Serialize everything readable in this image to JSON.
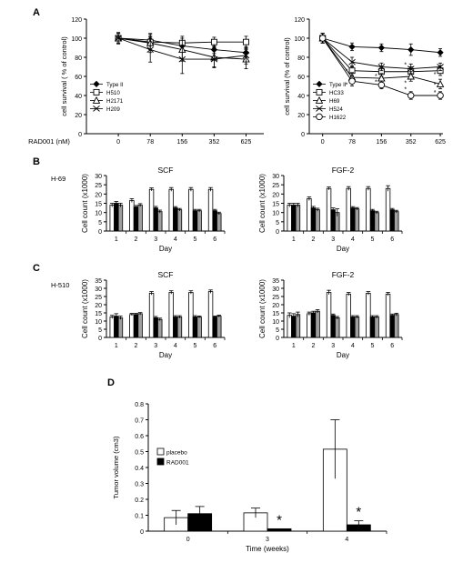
{
  "panel_labels": {
    "A": "A",
    "B": "B",
    "C": "C",
    "D": "D"
  },
  "colors": {
    "ink": "#000000",
    "white_bar": "#ffffff",
    "black_bar": "#000000",
    "grey_bar": "#a0a0a0"
  },
  "chart_data": [
    {
      "id": "A-left",
      "type": "line",
      "ylabel": "cell survival ( % of control)",
      "x_axis_title": "RAD001 (nM)",
      "categories": [
        "0",
        "78",
        "156",
        "352",
        "625"
      ],
      "ylim": [
        0,
        120
      ],
      "yticks": [
        "0",
        "20",
        "40",
        "60",
        "80",
        "100",
        "120"
      ],
      "legend_position": "bottom-left",
      "series": [
        {
          "name": "Type II",
          "marker": "diamond-filled",
          "values": [
            100,
            98,
            92,
            88,
            85
          ],
          "err": [
            5,
            4,
            4,
            4,
            4
          ]
        },
        {
          "name": "H510",
          "marker": "square-open",
          "values": [
            100,
            96,
            95,
            96,
            96
          ],
          "err": [
            5,
            8,
            7,
            5,
            6
          ]
        },
        {
          "name": "H2171",
          "marker": "triangle-open",
          "values": [
            100,
            95,
            88,
            80,
            78
          ],
          "err": [
            6,
            10,
            12,
            10,
            10
          ]
        },
        {
          "name": "H209",
          "marker": "x",
          "values": [
            100,
            88,
            78,
            78,
            82
          ],
          "err": [
            5,
            13,
            15,
            9,
            9
          ]
        }
      ]
    },
    {
      "id": "A-right",
      "type": "line",
      "ylabel": "cell survival (% of control)",
      "categories": [
        "0",
        "78",
        "156",
        "352",
        "625"
      ],
      "ylim": [
        0,
        120
      ],
      "yticks": [
        "0",
        "20",
        "40",
        "60",
        "80",
        "100",
        "120"
      ],
      "legend_position": "bottom-left",
      "significance_marks": [
        {
          "cat": 1,
          "y": 66,
          "text": "*"
        },
        {
          "cat": 1,
          "y": 52,
          "text": "*"
        },
        {
          "cat": 2,
          "y": 61,
          "text": "*"
        },
        {
          "cat": 2,
          "y": 55,
          "text": "*"
        },
        {
          "cat": 3,
          "y": 73,
          "text": "*"
        },
        {
          "cat": 3,
          "y": 54,
          "text": "*"
        },
        {
          "cat": 3,
          "y": 47,
          "text": "*"
        },
        {
          "cat": 4,
          "y": 63,
          "text": "*"
        },
        {
          "cat": 4,
          "y": 52,
          "text": "*"
        },
        {
          "cat": 4,
          "y": 44,
          "text": "*"
        }
      ],
      "series": [
        {
          "name": "Type II",
          "marker": "diamond-filled",
          "values": [
            100,
            91,
            90,
            88,
            85
          ],
          "err": [
            5,
            4,
            4,
            6,
            4
          ]
        },
        {
          "name": "HC33",
          "marker": "square-open",
          "values": [
            100,
            66,
            65,
            65,
            66
          ],
          "err": [
            5,
            5,
            5,
            5,
            5
          ]
        },
        {
          "name": "H69",
          "marker": "triangle-open",
          "values": [
            100,
            59,
            58,
            60,
            52
          ],
          "err": [
            5,
            5,
            5,
            5,
            5
          ]
        },
        {
          "name": "H524",
          "marker": "x",
          "values": [
            100,
            75,
            70,
            68,
            70
          ],
          "err": [
            5,
            5,
            4,
            5,
            4
          ]
        },
        {
          "name": "H1622",
          "marker": "circle-open",
          "values": [
            100,
            55,
            51,
            40,
            40
          ],
          "err": [
            5,
            5,
            4,
            4,
            4
          ]
        }
      ]
    },
    {
      "id": "B-SCF",
      "type": "bar",
      "panel_tag": "H-69",
      "title": "SCF",
      "xlabel": "Day",
      "ylabel": "Cell count (x1000)",
      "categories": [
        "1",
        "2",
        "3",
        "4",
        "5",
        "6"
      ],
      "ylim": [
        0,
        30
      ],
      "yticks": [
        "0",
        "5",
        "10",
        "15",
        "20",
        "25",
        "30"
      ],
      "series": [
        {
          "fill": "white",
          "values": [
            14,
            16.5,
            22.5,
            22.5,
            22.5,
            22.5
          ],
          "err": [
            1,
            1,
            0.8,
            1,
            1,
            1
          ]
        },
        {
          "fill": "black",
          "values": [
            15,
            13,
            12.5,
            12.5,
            11,
            11
          ],
          "err": [
            1,
            0.8,
            0.8,
            0.7,
            0.7,
            0.7
          ]
        },
        {
          "fill": "grey",
          "values": [
            14,
            14,
            10.5,
            11.5,
            11,
            9.5
          ],
          "err": [
            1,
            0.8,
            0.8,
            0.7,
            0.7,
            0.7
          ]
        }
      ]
    },
    {
      "id": "B-FGF2",
      "type": "bar",
      "title": "FGF-2",
      "xlabel": "Day",
      "ylabel": "Cell count (x1000)",
      "categories": [
        "1",
        "2",
        "3",
        "4",
        "5",
        "6"
      ],
      "ylim": [
        0,
        30
      ],
      "yticks": [
        "0",
        "5",
        "10",
        "15",
        "20",
        "25",
        "30"
      ],
      "series": [
        {
          "fill": "white",
          "values": [
            14,
            17.5,
            23,
            23,
            23,
            23
          ],
          "err": [
            1,
            1,
            0.8,
            1,
            1,
            1.5
          ]
        },
        {
          "fill": "black",
          "values": [
            14,
            12.5,
            11.5,
            12.5,
            11,
            11.5
          ],
          "err": [
            1,
            0.8,
            1,
            0.7,
            0.7,
            0.7
          ]
        },
        {
          "fill": "grey",
          "values": [
            14,
            11.5,
            10,
            12,
            10,
            10.5
          ],
          "err": [
            1,
            0.8,
            2,
            0.7,
            0.7,
            0.7
          ]
        }
      ]
    },
    {
      "id": "C-SCF",
      "type": "bar",
      "panel_tag": "H-510",
      "title": "SCF",
      "xlabel": "Day",
      "ylabel": "Cell count (x1000)",
      "categories": [
        "1",
        "2",
        "3",
        "4",
        "5",
        "6"
      ],
      "ylim": [
        0,
        35
      ],
      "yticks": [
        "0",
        "5",
        "10",
        "15",
        "20",
        "25",
        "30",
        "35"
      ],
      "series": [
        {
          "fill": "white",
          "values": [
            12.5,
            14,
            27,
            27.5,
            27.5,
            28
          ],
          "err": [
            1,
            0.7,
            1,
            1,
            1,
            1
          ]
        },
        {
          "fill": "black",
          "values": [
            13,
            14,
            12,
            12.5,
            12.5,
            12.5
          ],
          "err": [
            1.5,
            0.7,
            0.8,
            0.8,
            0.8,
            0.6
          ]
        },
        {
          "fill": "grey",
          "values": [
            12,
            14.5,
            11,
            12.5,
            12.5,
            13
          ],
          "err": [
            1,
            0.7,
            0.8,
            0.8,
            0.6,
            0.6
          ]
        }
      ]
    },
    {
      "id": "C-FGF2",
      "type": "bar",
      "title": "FGF-2",
      "xlabel": "Day",
      "ylabel": "Cell count (x1000)",
      "categories": [
        "1",
        "2",
        "3",
        "4",
        "5",
        "6"
      ],
      "ylim": [
        0,
        35
      ],
      "yticks": [
        "0",
        "5",
        "10",
        "15",
        "20",
        "25",
        "30",
        "35"
      ],
      "series": [
        {
          "fill": "white",
          "values": [
            13.5,
            14.5,
            27.5,
            26.5,
            27,
            26.5
          ],
          "err": [
            1.5,
            1,
            1.3,
            1,
            1,
            1
          ]
        },
        {
          "fill": "black",
          "values": [
            13,
            15,
            13.5,
            12.5,
            12.5,
            13.5
          ],
          "err": [
            1.5,
            1,
            0.8,
            0.8,
            0.8,
            0.8
          ]
        },
        {
          "fill": "grey",
          "values": [
            14,
            16,
            12,
            12.5,
            12.5,
            14
          ],
          "err": [
            1.5,
            1,
            0.8,
            0.8,
            0.8,
            0.8
          ]
        }
      ]
    },
    {
      "id": "D",
      "type": "bar",
      "xlabel": "Time (weeks)",
      "ylabel": "Tumor volume (cm3)",
      "categories": [
        "0",
        "3",
        "4"
      ],
      "ylim": [
        0,
        0.8
      ],
      "yticks": [
        "0",
        "0.1",
        "0.2",
        "0.3",
        "0.4",
        "0.5",
        "0.6",
        "0.7",
        "0.8"
      ],
      "legend_position": "top-left",
      "significance_marks": [
        {
          "cat": 1,
          "text": "*"
        },
        {
          "cat": 2,
          "text": "*"
        }
      ],
      "series": [
        {
          "name": "placebo",
          "fill": "white",
          "values": [
            0.085,
            0.115,
            0.515
          ],
          "err": [
            0.045,
            0.03,
            0.185
          ]
        },
        {
          "name": "RAD001",
          "fill": "black",
          "values": [
            0.11,
            0.015,
            0.04
          ],
          "err": [
            0.045,
            0,
            0.025
          ]
        }
      ]
    }
  ]
}
